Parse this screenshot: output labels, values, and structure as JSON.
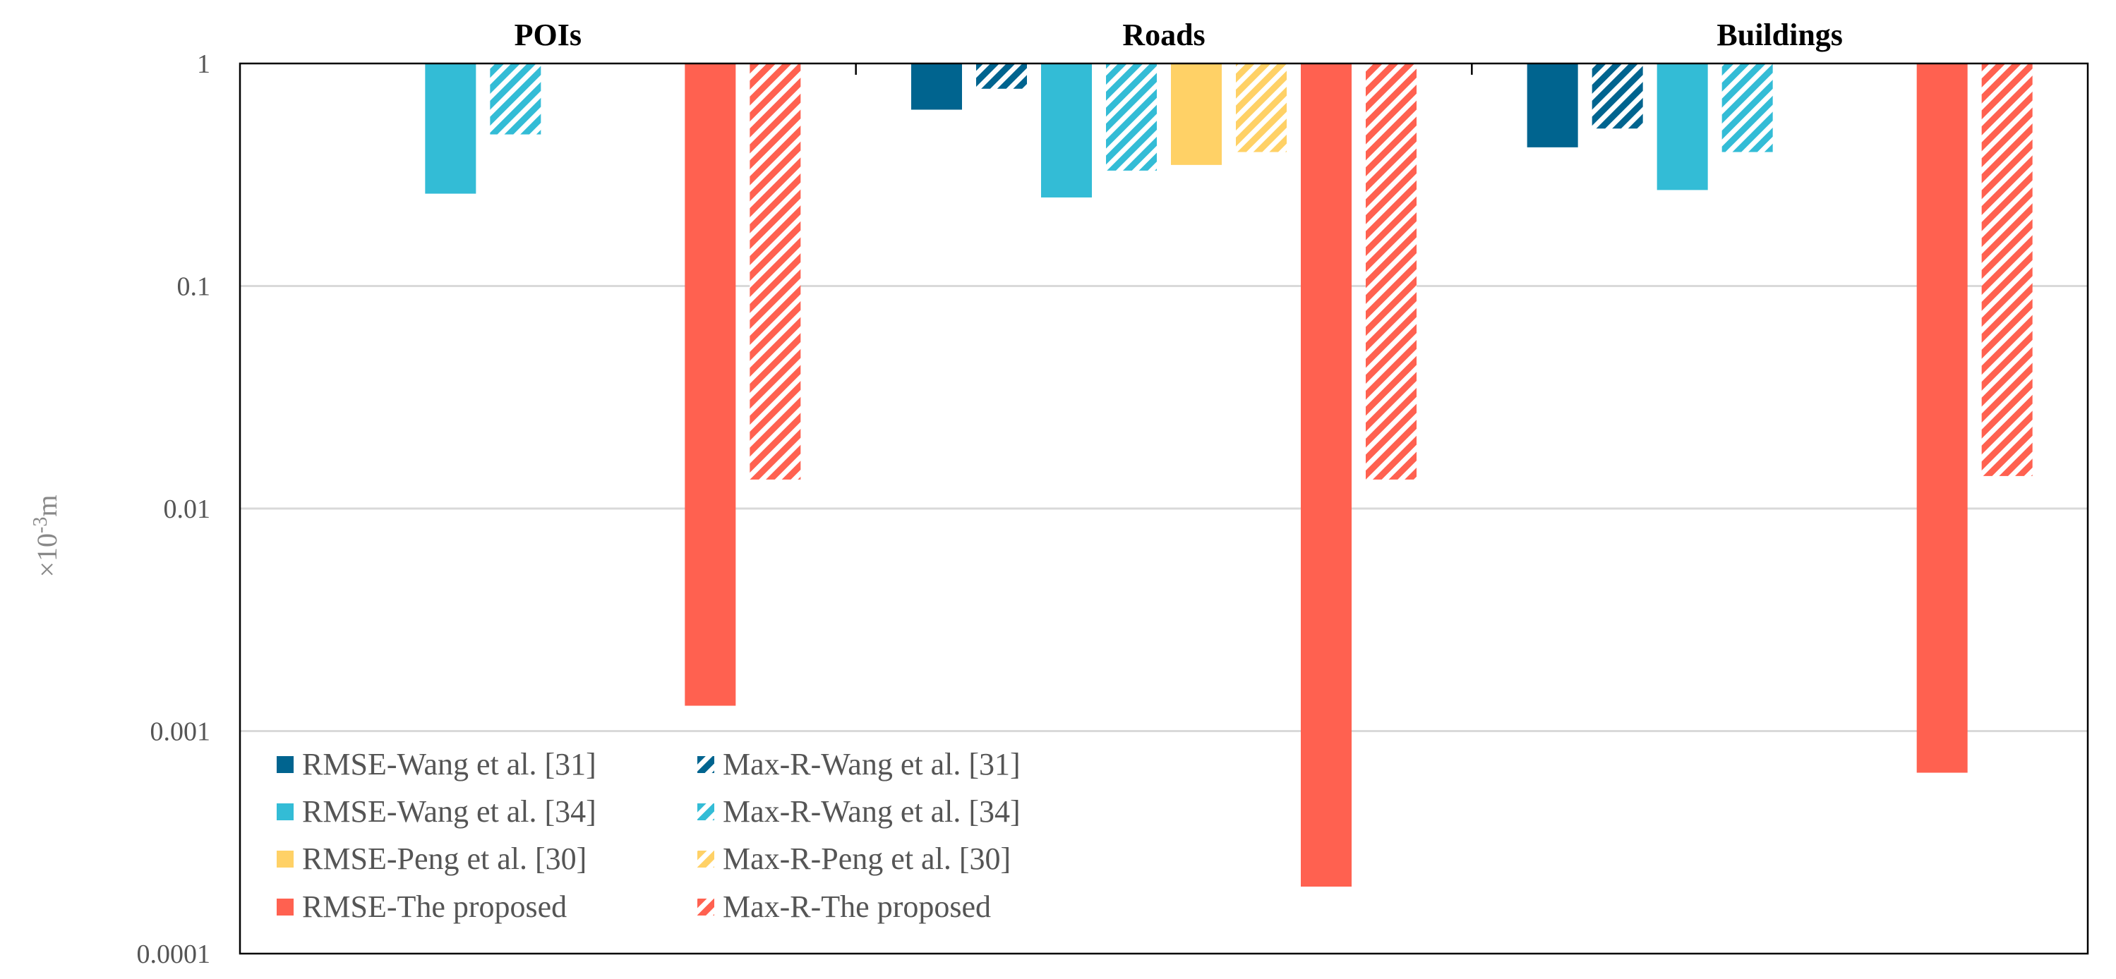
{
  "chart_data": {
    "type": "bar",
    "scale": "log",
    "ylabel": "×10-3m",
    "ylabel_prefix": "×10",
    "ylabel_exp": "-3",
    "ylabel_unit": "m",
    "ylim": [
      0.0001,
      1
    ],
    "ytick_labels": [
      "1",
      "0.1",
      "0.01",
      "0.001",
      "0.0001"
    ],
    "yticks": [
      1,
      0.1,
      0.01,
      0.001,
      0.0001
    ],
    "grid": true,
    "legend_position": "bottom-left",
    "categories": [
      "POIs",
      "Roads",
      "Buildings"
    ],
    "series": [
      {
        "name": "RMSE-Wang et al. [31]",
        "color": "#00648f",
        "hatched": false,
        "values": [
          null,
          0.62,
          0.42
        ]
      },
      {
        "name": "Max-R-Wang et al. [31]",
        "color": "#00648f",
        "hatched": true,
        "values": [
          null,
          0.77,
          0.51
        ]
      },
      {
        "name": "RMSE-Wang et al. [34]",
        "color": "#33bcd6",
        "hatched": false,
        "values": [
          0.26,
          0.25,
          0.27
        ]
      },
      {
        "name": "Max-R-Wang et al. [34]",
        "color": "#33bcd6",
        "hatched": true,
        "values": [
          0.48,
          0.33,
          0.4
        ]
      },
      {
        "name": "RMSE-Peng et al. [30]",
        "color": "#ffd166",
        "hatched": false,
        "values": [
          null,
          0.35,
          null
        ]
      },
      {
        "name": "Max-R-Peng et al. [30]",
        "color": "#ffd166",
        "hatched": true,
        "values": [
          null,
          0.4,
          null
        ]
      },
      {
        "name": "RMSE-The proposed",
        "color": "#ff6150",
        "hatched": false,
        "values": [
          0.0013,
          0.0002,
          0.00065
        ]
      },
      {
        "name": "Max-R-The proposed",
        "color": "#ff6150",
        "hatched": true,
        "values": [
          0.0135,
          0.0135,
          0.014
        ]
      }
    ]
  }
}
